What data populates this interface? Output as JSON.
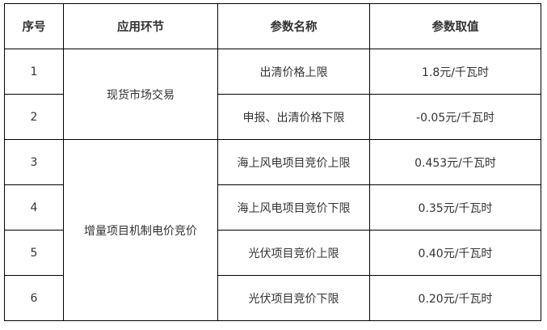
{
  "headers": [
    "序号",
    "应用环节",
    "参数名称",
    "参数取值"
  ],
  "groups": [
    "现货市场交易",
    "增量项目机制电价竞价"
  ],
  "rows": [
    {
      "no": "1",
      "name": "出清价格上限",
      "value": "1.8元/千瓦时"
    },
    {
      "no": "2",
      "name": "申报、出清价格下限",
      "value": "-0.05元/千瓦时"
    },
    {
      "no": "3",
      "name": "海上风电项目竞价上限",
      "value": "0.453元/千瓦时"
    },
    {
      "no": "4",
      "name": "海上风电项目竞价下限",
      "value": "0.35元/千瓦时"
    },
    {
      "no": "5",
      "name": "光伏项目竞价上限",
      "value": "0.40元/千瓦时"
    },
    {
      "no": "6",
      "name": "光伏项目竞价下限",
      "value": "0.20元/千瓦时"
    }
  ]
}
